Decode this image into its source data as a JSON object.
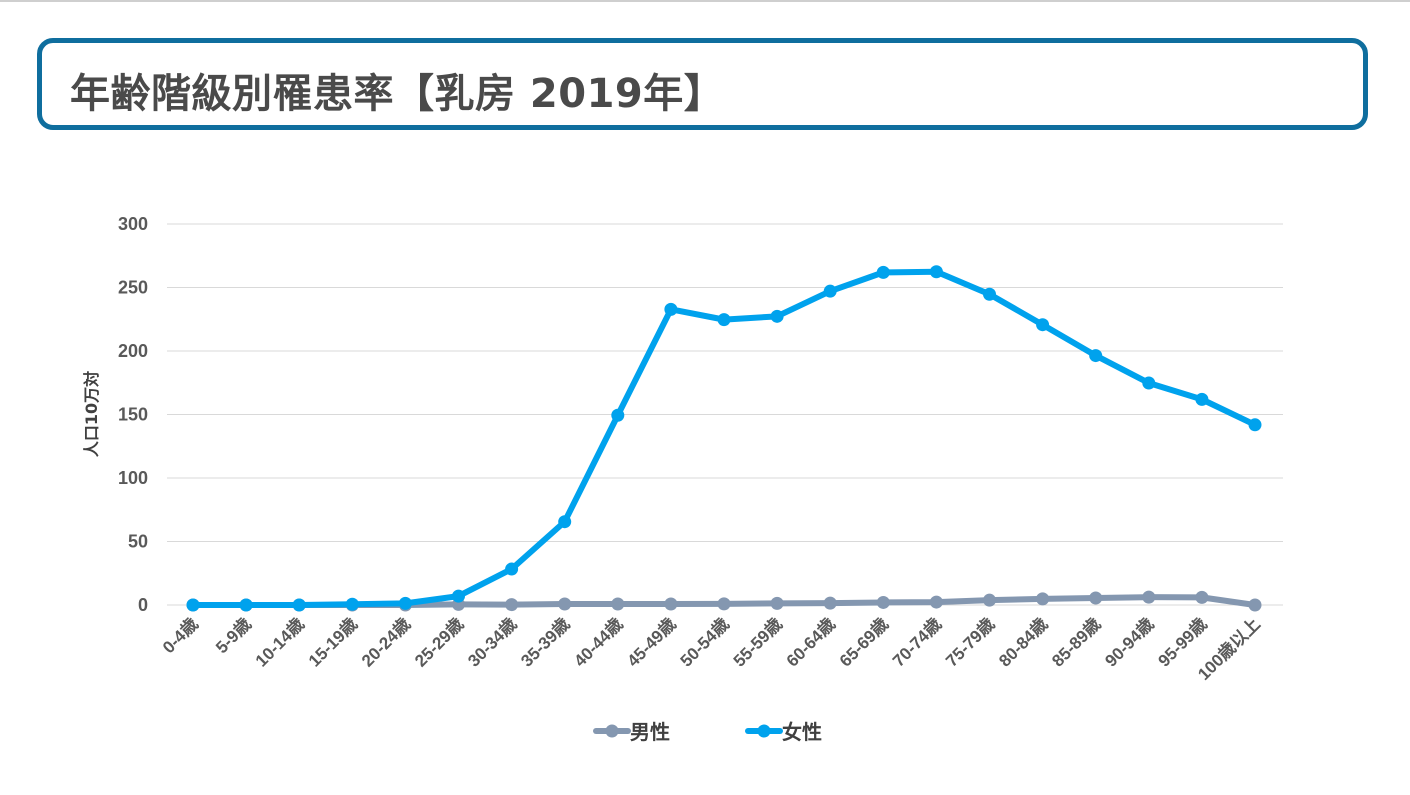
{
  "title": "年齢階級別罹患率【乳房 2019年】",
  "chart_data": {
    "type": "line",
    "ylabel": "人口10万対",
    "ylim": [
      0,
      300
    ],
    "yticks": [
      0,
      50,
      100,
      150,
      200,
      250,
      300
    ],
    "grid": true,
    "legend_position": "bottom",
    "categories": [
      "0-4歳",
      "5-9歳",
      "10-14歳",
      "15-19歳",
      "20-24歳",
      "25-29歳",
      "30-34歳",
      "35-39歳",
      "40-44歳",
      "45-49歳",
      "50-54歳",
      "55-59歳",
      "60-64歳",
      "65-69歳",
      "70-74歳",
      "75-79歳",
      "80-84歳",
      "85-89歳",
      "90-94歳",
      "95-99歳",
      "100歳以上"
    ],
    "series": [
      {
        "name": "男性",
        "color": "#8497b0",
        "values": [
          0,
          0,
          0,
          0,
          0,
          0.5,
          0.3,
          0.8,
          0.8,
          0.8,
          0.9,
          1.3,
          1.5,
          2.0,
          2.3,
          3.8,
          4.8,
          5.5,
          6.2,
          6.0,
          0
        ]
      },
      {
        "name": "女性",
        "color": "#00a2ed",
        "values": [
          0,
          0,
          0,
          0.6,
          1.3,
          7.0,
          28.3,
          65.6,
          149.4,
          232.8,
          224.7,
          227.3,
          247.1,
          261.9,
          262.4,
          244.7,
          220.7,
          196.4,
          174.8,
          161.9,
          141.9
        ]
      }
    ]
  }
}
